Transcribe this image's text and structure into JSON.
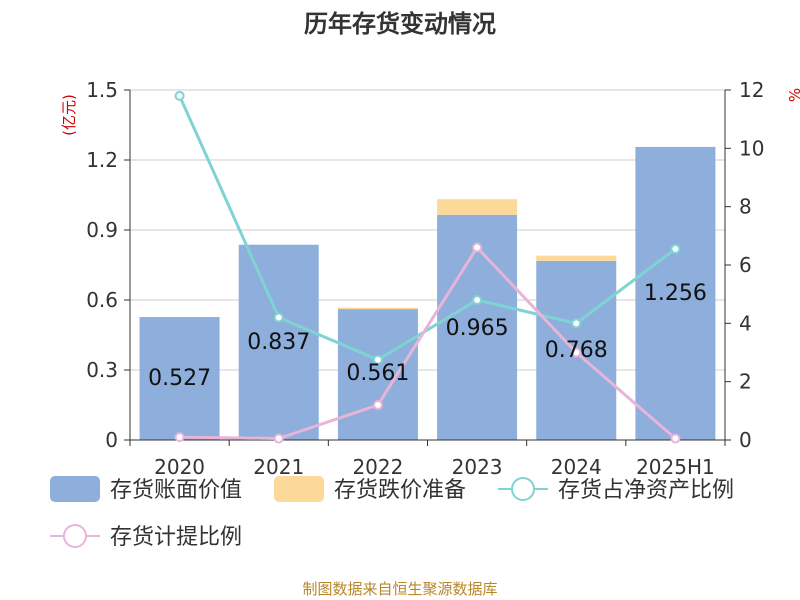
{
  "chart_data": {
    "type": "bar",
    "title": "历年存货变动情况",
    "categories": [
      "2020",
      "2021",
      "2022",
      "2023",
      "2024",
      "2025H1"
    ],
    "left_unit": "(亿元)",
    "right_unit_partial": "%",
    "left_axis": {
      "min": 0,
      "max": 1.5,
      "ticks": [
        "0",
        "0.3",
        "0.6",
        "0.9",
        "1.2",
        "1.5"
      ]
    },
    "right_axis": {
      "min": 0,
      "max": 12,
      "ticks": [
        "0",
        "2",
        "4",
        "6",
        "8",
        "10",
        "12"
      ]
    },
    "bars": [
      {
        "name": "存货账面价值",
        "color": "#8eaedb",
        "values": [
          0.527,
          0.837,
          0.561,
          0.965,
          0.768,
          1.256
        ]
      },
      {
        "name": "存货跌价准备",
        "color": "#fcd998",
        "values": [
          0,
          0,
          0.006,
          0.067,
          0.022,
          0
        ]
      }
    ],
    "bar_labels": [
      "0.527",
      "0.837",
      "0.561",
      "0.965",
      "0.768",
      "1.256"
    ],
    "lines": [
      {
        "name": "存货占净资产比例",
        "color": "#7fd3d3",
        "axis": "right",
        "values": [
          11.8,
          4.2,
          2.75,
          4.8,
          4.0,
          6.55
        ]
      },
      {
        "name": "存货计提比例",
        "color": "#e8b4d8",
        "axis": "right",
        "values": [
          0.1,
          0.05,
          1.2,
          6.6,
          3.0,
          0.05
        ]
      }
    ],
    "legend_position": "bottom",
    "grid": true
  },
  "source": "制图数据来自恒生聚源数据库"
}
